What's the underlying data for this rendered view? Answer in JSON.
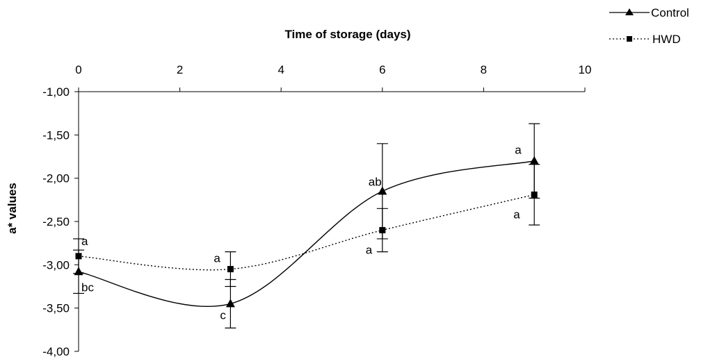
{
  "chart_data": {
    "type": "line",
    "title": "",
    "xlabel": "Time of storage (days)",
    "ylabel": "a* values",
    "xlim": [
      0,
      10
    ],
    "ylim": [
      -4.0,
      -1.0
    ],
    "x_ticks": [
      "0",
      "2",
      "4",
      "6",
      "8",
      "10"
    ],
    "x_tick_values": [
      0,
      2,
      4,
      6,
      8,
      10
    ],
    "y_ticks": [
      "-1,00",
      "-1,50",
      "-2,00",
      "-2,50",
      "-3,00",
      "-3,50",
      "-4,00"
    ],
    "y_tick_values": [
      -1.0,
      -1.5,
      -2.0,
      -2.5,
      -3.0,
      -3.5,
      -4.0
    ],
    "x_axis_position": "top",
    "y_axis_reversed": true,
    "grid": false,
    "legend_position": "top-right",
    "series": [
      {
        "name": "Control",
        "marker": "triangle",
        "line_style": "solid",
        "color": "#000000",
        "x": [
          0,
          3,
          6,
          9
        ],
        "y": [
          -3.08,
          -3.45,
          -2.15,
          -1.8
        ],
        "error": [
          0.25,
          0.28,
          0.55,
          0.43
        ],
        "labels": [
          "bc",
          "c",
          "ab",
          "a"
        ]
      },
      {
        "name": "HWD",
        "marker": "square",
        "line_style": "dotted",
        "color": "#000000",
        "x": [
          0,
          3,
          6,
          9
        ],
        "y": [
          -2.9,
          -3.05,
          -2.6,
          -2.19
        ],
        "error": [
          0.2,
          0.2,
          0.25,
          0.35
        ],
        "labels": [
          "a",
          "a",
          "a",
          "a"
        ]
      }
    ]
  }
}
